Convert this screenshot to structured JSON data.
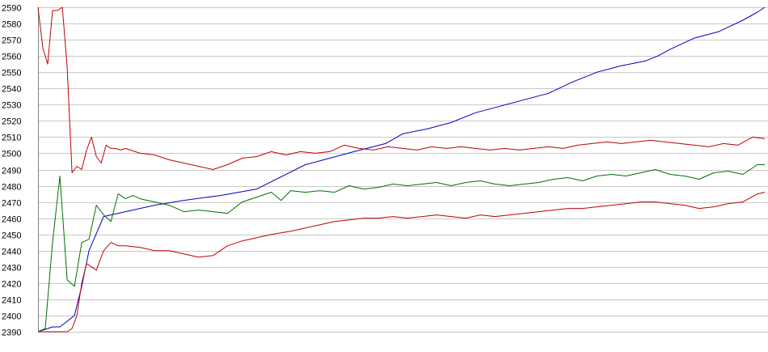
{
  "chart_data": {
    "type": "line",
    "title": "",
    "xlabel": "",
    "ylabel": "",
    "ylim": [
      2390,
      2590
    ],
    "yticks": [
      2390,
      2400,
      2410,
      2420,
      2430,
      2440,
      2450,
      2460,
      2470,
      2480,
      2490,
      2500,
      2510,
      2520,
      2530,
      2540,
      2550,
      2560,
      2570,
      2580,
      2590
    ],
    "xlim": [
      0,
      299
    ],
    "grid": true,
    "legend": "none",
    "series": [
      {
        "color": "#0000c0",
        "x": [
          0,
          6,
          9,
          15,
          18,
          21,
          27,
          36,
          48,
          60,
          75,
          90,
          110,
          120,
          130,
          143,
          150,
          160,
          170,
          180,
          190,
          200,
          210,
          220,
          230,
          240,
          250,
          255,
          260,
          270,
          280,
          290,
          296,
          299
        ],
        "values": [
          2390,
          2393,
          2393,
          2400,
          2418,
          2440,
          2461,
          2464,
          2468,
          2471,
          2474,
          2478,
          2493,
          2497,
          2501,
          2506,
          2512,
          2515,
          2519,
          2525,
          2529,
          2533,
          2537,
          2544,
          2550,
          2554,
          2557,
          2560,
          2564,
          2571,
          2575,
          2582,
          2587,
          2590
        ]
      },
      {
        "color": "#007000",
        "x": [
          0,
          3,
          6,
          9,
          12,
          15,
          18,
          21,
          24,
          27,
          30,
          33,
          36,
          39,
          42,
          48,
          54,
          60,
          66,
          72,
          78,
          84,
          90,
          96,
          100,
          104,
          110,
          116,
          122,
          128,
          134,
          140,
          146,
          152,
          158,
          164,
          170,
          176,
          182,
          188,
          194,
          200,
          206,
          212,
          218,
          224,
          230,
          236,
          242,
          248,
          254,
          260,
          266,
          272,
          278,
          284,
          290,
          296,
          299
        ],
        "values": [
          2390,
          2392,
          2445,
          2486,
          2422,
          2418,
          2445,
          2447,
          2468,
          2462,
          2458,
          2475,
          2472,
          2474,
          2472,
          2470,
          2468,
          2464,
          2465,
          2464,
          2463,
          2470,
          2473,
          2476,
          2471,
          2477,
          2476,
          2477,
          2476,
          2480,
          2478,
          2479,
          2481,
          2480,
          2481,
          2482,
          2480,
          2482,
          2483,
          2481,
          2480,
          2481,
          2482,
          2484,
          2485,
          2483,
          2486,
          2487,
          2486,
          2488,
          2490,
          2487,
          2486,
          2484,
          2488,
          2489,
          2487,
          2493,
          2493
        ]
      },
      {
        "color": "#c00000",
        "x": [
          0,
          2,
          4,
          6,
          8,
          10,
          12,
          14,
          16,
          18,
          20,
          22,
          24,
          26,
          28,
          30,
          32,
          34,
          36,
          38,
          42,
          48,
          54,
          60,
          66,
          72,
          78,
          84,
          90,
          96,
          102,
          108,
          114,
          120,
          126,
          132,
          138,
          144,
          150,
          156,
          162,
          168,
          174,
          180,
          186,
          192,
          198,
          204,
          210,
          216,
          222,
          228,
          234,
          240,
          246,
          252,
          258,
          264,
          270,
          276,
          282,
          288,
          294,
          299
        ],
        "values": [
          2590,
          2565,
          2555,
          2588,
          2588,
          2590,
          2553,
          2488,
          2492,
          2490,
          2502,
          2510,
          2498,
          2494,
          2505,
          2503,
          2503,
          2502,
          2503,
          2502,
          2500,
          2499,
          2496,
          2494,
          2492,
          2490,
          2493,
          2497,
          2498,
          2501,
          2499,
          2501,
          2500,
          2501,
          2505,
          2503,
          2502,
          2504,
          2503,
          2502,
          2504,
          2503,
          2504,
          2503,
          2502,
          2503,
          2502,
          2503,
          2504,
          2503,
          2505,
          2506,
          2507,
          2506,
          2507,
          2508,
          2507,
          2506,
          2505,
          2504,
          2506,
          2505,
          2510,
          2509
        ]
      },
      {
        "color": "#c00000",
        "x": [
          0,
          6,
          10,
          12,
          14,
          16,
          18,
          20,
          24,
          27,
          30,
          33,
          36,
          42,
          48,
          54,
          60,
          66,
          72,
          78,
          84,
          90,
          96,
          100,
          104,
          110,
          116,
          122,
          128,
          134,
          140,
          146,
          152,
          158,
          164,
          170,
          176,
          182,
          188,
          194,
          200,
          206,
          212,
          218,
          224,
          230,
          236,
          242,
          248,
          254,
          260,
          266,
          272,
          278,
          284,
          290,
          296,
          299
        ],
        "values": [
          2390,
          2390,
          2390,
          2390,
          2392,
          2400,
          2420,
          2432,
          2428,
          2440,
          2445,
          2443,
          2443,
          2442,
          2440,
          2440,
          2438,
          2436,
          2437,
          2443,
          2446,
          2448,
          2450,
          2451,
          2452,
          2454,
          2456,
          2458,
          2459,
          2460,
          2460,
          2461,
          2460,
          2461,
          2462,
          2461,
          2460,
          2462,
          2461,
          2462,
          2463,
          2464,
          2465,
          2466,
          2466,
          2467,
          2468,
          2469,
          2470,
          2470,
          2469,
          2468,
          2466,
          2467,
          2469,
          2470,
          2475,
          2476
        ]
      }
    ]
  }
}
